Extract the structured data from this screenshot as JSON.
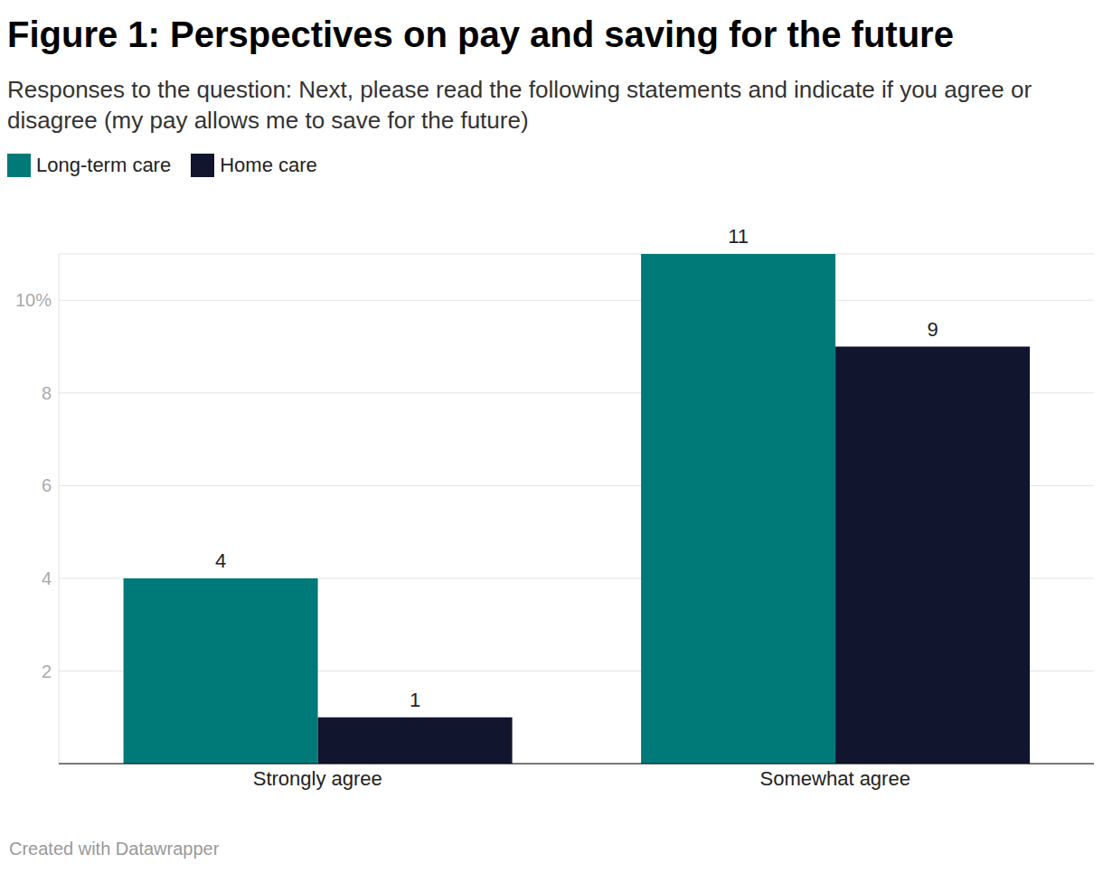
{
  "chart_data": {
    "type": "bar",
    "title": "Figure 1: Perspectives on pay and saving for the future",
    "subtitle": "Responses to the question: Next, please read the following statements and indicate if you agree or disagree (my pay allows me to save for the future)",
    "annotation": "Created with Datawrapper",
    "categories": [
      "Strongly agree",
      "Somewhat agree"
    ],
    "series": [
      {
        "name": "Long-term care",
        "color": "#007a78",
        "values": [
          4,
          11
        ]
      },
      {
        "name": "Home care",
        "color": "#12152e",
        "values": [
          1,
          9
        ]
      }
    ],
    "ylim": [
      0,
      11
    ],
    "yticks": [
      2,
      4,
      6,
      8,
      {
        "value": 10,
        "label": "10%"
      }
    ],
    "grid": true,
    "data_labels": true,
    "legend": "top-left"
  }
}
